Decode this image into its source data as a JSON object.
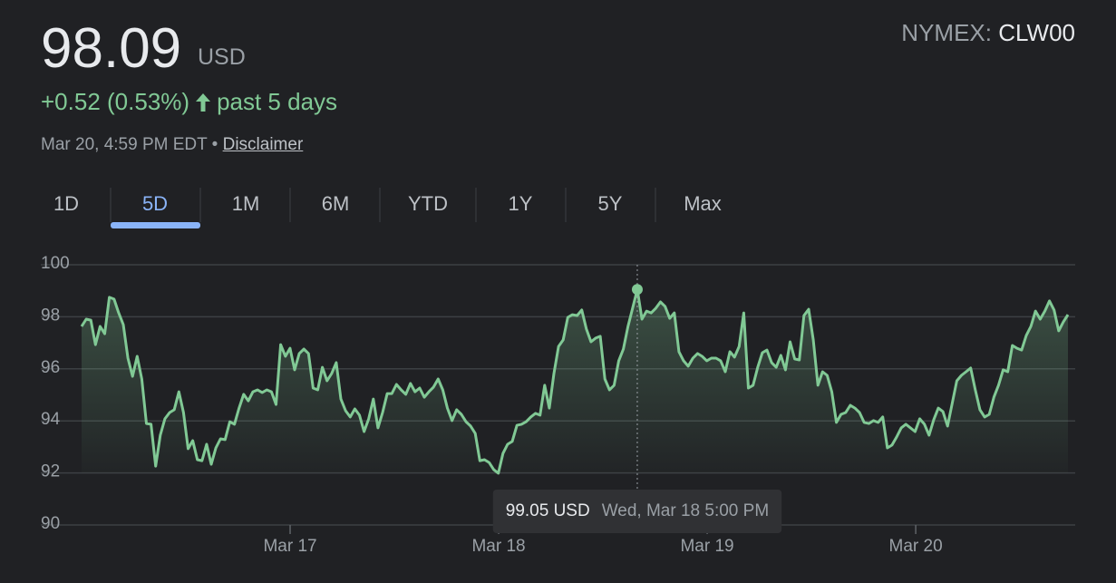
{
  "header": {
    "price": "98.09",
    "currency": "USD",
    "change": "+0.52 (0.53%)",
    "period": "past 5 days",
    "timestamp": "Mar 20, 4:59 PM EDT",
    "disclaimer": "Disclaimer",
    "exchange": "NYMEX:",
    "ticker": "CLW00"
  },
  "tabs": {
    "items": [
      "1D",
      "5D",
      "1M",
      "6M",
      "YTD",
      "1Y",
      "5Y",
      "Max"
    ],
    "selected": "5D"
  },
  "chart_data": {
    "type": "line",
    "color": "#81c995",
    "grid": true,
    "ylim": [
      90,
      100
    ],
    "yticks": [
      90,
      92,
      94,
      96,
      98,
      100
    ],
    "xlim": [
      16,
      20.73
    ],
    "xticks": [
      {
        "value": 17,
        "label": "Mar 17"
      },
      {
        "value": 18,
        "label": "Mar 18"
      },
      {
        "value": 19,
        "label": "Mar 19"
      },
      {
        "value": 20,
        "label": "Mar 20"
      }
    ],
    "values": [
      97.63,
      97.91,
      97.87,
      96.93,
      97.63,
      97.35,
      98.75,
      98.68,
      98.15,
      97.7,
      96.41,
      95.71,
      96.48,
      95.61,
      93.9,
      93.87,
      92.26,
      93.45,
      94.08,
      94.32,
      94.43,
      95.12,
      94.32,
      92.93,
      93.24,
      92.51,
      92.47,
      93.1,
      92.33,
      92.96,
      93.31,
      93.28,
      93.97,
      93.87,
      94.49,
      95.02,
      94.77,
      95.12,
      95.19,
      95.09,
      95.19,
      95.12,
      94.63,
      96.93,
      96.48,
      96.79,
      95.96,
      96.59,
      96.76,
      96.59,
      95.26,
      95.19,
      96.06,
      95.54,
      95.82,
      96.24,
      94.84,
      94.39,
      94.15,
      94.46,
      94.22,
      93.59,
      94.08,
      94.84,
      93.73,
      94.32,
      95.05,
      95.05,
      95.4,
      95.19,
      95.02,
      95.44,
      95.12,
      95.26,
      94.91,
      95.12,
      95.3,
      95.61,
      95.19,
      94.49,
      94.01,
      94.43,
      94.25,
      93.97,
      93.8,
      93.52,
      92.47,
      92.51,
      92.4,
      92.13,
      91.99,
      92.75,
      93.1,
      93.21,
      93.83,
      93.87,
      93.97,
      94.15,
      94.29,
      94.22,
      95.37,
      94.49,
      95.82,
      96.86,
      97.11,
      97.98,
      98.08,
      98.05,
      98.26,
      97.53,
      97.04,
      97.18,
      97.25,
      95.61,
      95.19,
      95.37,
      96.31,
      96.76,
      97.63,
      98.33,
      99.05,
      97.91,
      98.22,
      98.15,
      98.33,
      98.57,
      98.4,
      97.94,
      98.15,
      96.66,
      96.31,
      96.1,
      96.41,
      96.59,
      96.48,
      96.31,
      96.41,
      96.41,
      96.31,
      95.89,
      96.66,
      96.45,
      96.86,
      98.15,
      95.26,
      95.37,
      96.06,
      96.62,
      96.72,
      96.24,
      96.06,
      96.52,
      95.96,
      97.04,
      96.38,
      96.34,
      98.05,
      98.29,
      97.11,
      95.37,
      95.89,
      95.75,
      95.12,
      93.94,
      94.25,
      94.32,
      94.6,
      94.49,
      94.32,
      93.94,
      93.9,
      94.01,
      93.94,
      94.15,
      92.96,
      93.07,
      93.38,
      93.73,
      93.87,
      93.73,
      93.59,
      94.08,
      93.87,
      93.45,
      94.04,
      94.49,
      94.36,
      93.8,
      94.67,
      95.54,
      95.75,
      95.89,
      96.03,
      95.19,
      94.43,
      94.15,
      94.25,
      94.91,
      95.37,
      95.96,
      95.89,
      96.9,
      96.79,
      96.72,
      97.28,
      97.63,
      98.22,
      97.91,
      98.22,
      98.61,
      98.26,
      97.46,
      97.8,
      98.08
    ],
    "tooltip": {
      "value": 99.05,
      "label": "99.05 USD",
      "date": "Wed, Mar 18 5:00 PM"
    }
  }
}
